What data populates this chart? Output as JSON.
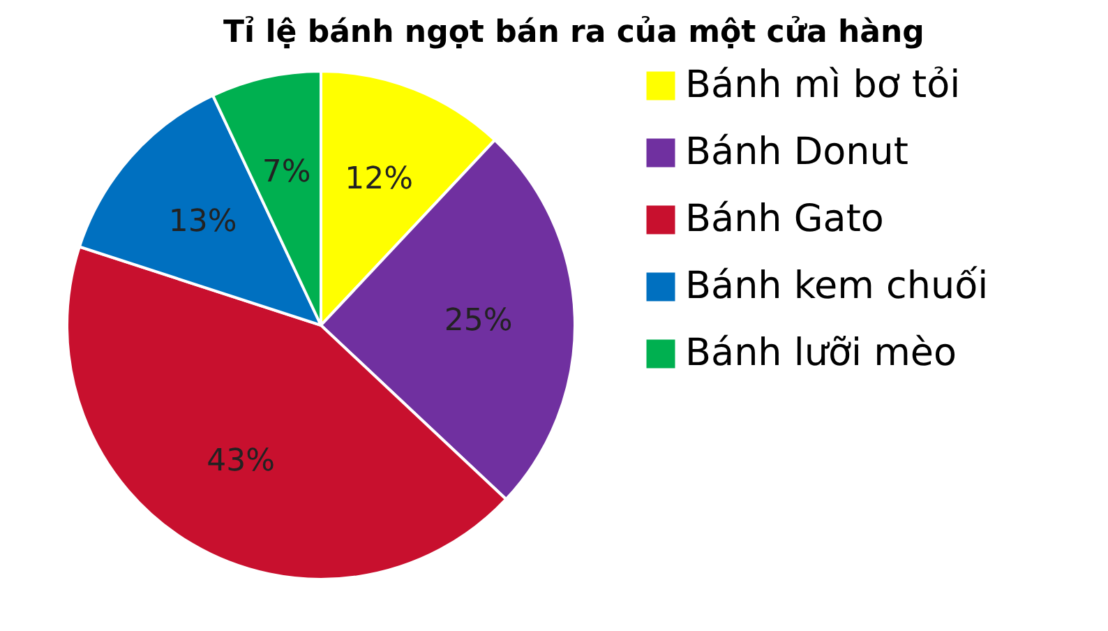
{
  "chart_data": {
    "type": "pie",
    "title": "Tỉ lệ bánh ngọt bán ra của một cửa hàng",
    "categories": [
      "Bánh mì bơ tỏi",
      "Bánh Donut",
      "Bánh Gato",
      "Bánh kem chuối",
      "Bánh  lưỡi mèo"
    ],
    "values": [
      12,
      25,
      43,
      13,
      7
    ],
    "value_labels": [
      "12%",
      "25%",
      "43%",
      "13%",
      "7%"
    ],
    "colors": [
      "#ffff00",
      "#7030a0",
      "#c8102e",
      "#0070c0",
      "#00b050"
    ],
    "legend": "right"
  }
}
